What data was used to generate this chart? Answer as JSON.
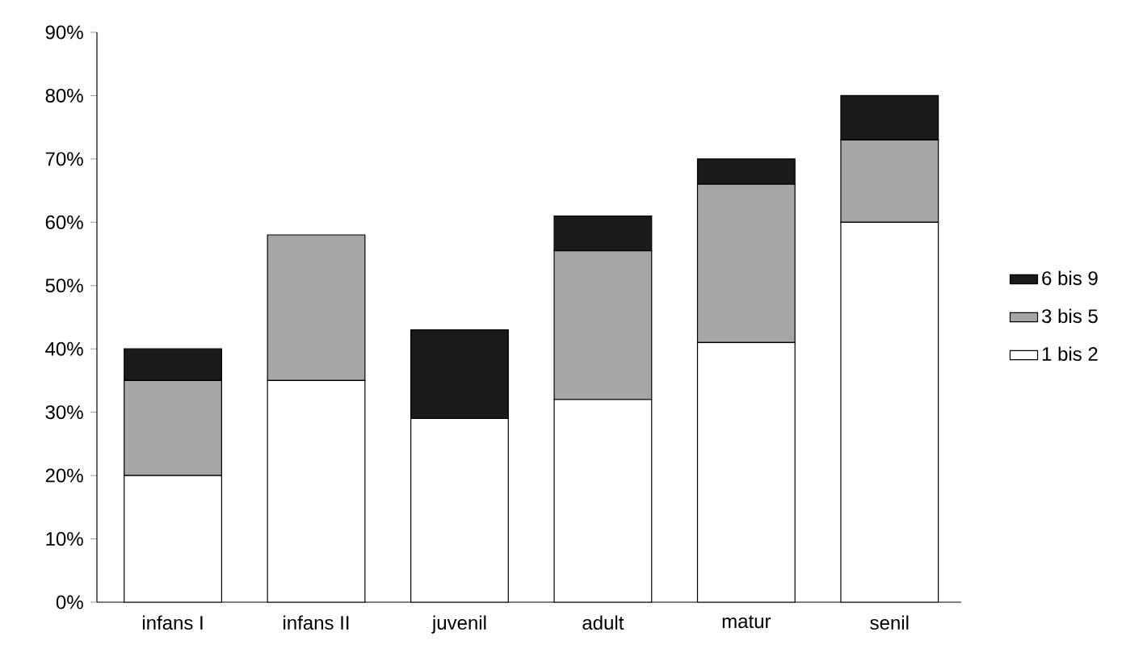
{
  "chart_data": {
    "type": "bar",
    "stacked": true,
    "categories": [
      "infans I",
      "infans II",
      "juvenil",
      "adult",
      "matur",
      "senil"
    ],
    "series": [
      {
        "name": "1 bis 2",
        "color": "#ffffff",
        "values": [
          20,
          35,
          29,
          32,
          41,
          60
        ]
      },
      {
        "name": "3 bis 5",
        "color": "#a6a6a6",
        "values": [
          15,
          23,
          0,
          23.5,
          25,
          13
        ]
      },
      {
        "name": "6 bis 9",
        "color": "#1a1a1a",
        "values": [
          5,
          0,
          14,
          5.5,
          4,
          7
        ]
      }
    ],
    "ylim": [
      0,
      90
    ],
    "yticks": [
      {
        "value": 0,
        "label": "0%"
      },
      {
        "value": 10,
        "label": "10%"
      },
      {
        "value": 20,
        "label": "20%"
      },
      {
        "value": 30,
        "label": "30%"
      },
      {
        "value": 40,
        "label": "40%"
      },
      {
        "value": 50,
        "label": "50%"
      },
      {
        "value": 60,
        "label": "60%"
      },
      {
        "value": 70,
        "label": "70%"
      },
      {
        "value": 80,
        "label": "80%"
      },
      {
        "value": 90,
        "label": "90%"
      }
    ],
    "grid": false,
    "legend": "right"
  }
}
